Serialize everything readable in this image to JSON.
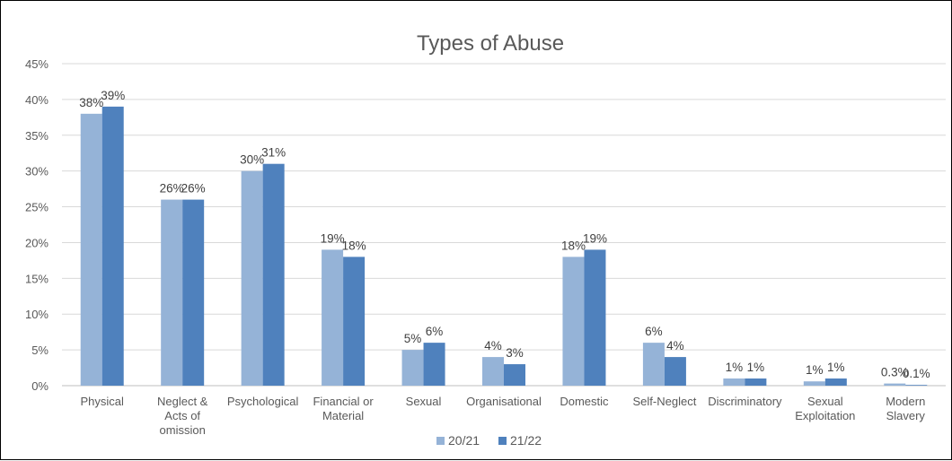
{
  "chart_data": {
    "type": "bar",
    "title": "Types of Abuse",
    "xlabel": "",
    "ylabel": "",
    "ylim": [
      0,
      45
    ],
    "y_ticks": [
      "0%",
      "5%",
      "10%",
      "15%",
      "20%",
      "25%",
      "30%",
      "35%",
      "40%",
      "45%"
    ],
    "y_tick_values": [
      0,
      5,
      10,
      15,
      20,
      25,
      30,
      35,
      40,
      45
    ],
    "grid": true,
    "legend_position": "bottom",
    "categories": [
      [
        "Physical"
      ],
      [
        "Neglect &",
        "Acts of",
        "omission"
      ],
      [
        "Psychological"
      ],
      [
        "Financial or",
        "Material"
      ],
      [
        "Sexual"
      ],
      [
        "Organisational"
      ],
      [
        "Domestic"
      ],
      [
        "Self-Neglect"
      ],
      [
        "Discriminatory"
      ],
      [
        "Sexual",
        "Exploitation"
      ],
      [
        "Modern",
        "Slavery"
      ]
    ],
    "series": [
      {
        "name": "20/21",
        "color": "#95B3D7",
        "values": [
          38,
          26,
          30,
          19,
          5,
          4,
          18,
          6,
          1,
          0.6,
          0.3
        ],
        "labels": [
          "38%",
          "26%",
          "30%",
          "19%",
          "5%",
          "4%",
          "18%",
          "6%",
          "1%",
          "1%",
          "0.3%"
        ]
      },
      {
        "name": "21/22",
        "color": "#4F81BD",
        "values": [
          39,
          26,
          31,
          18,
          6,
          3,
          19,
          4,
          1,
          1,
          0.1
        ],
        "labels": [
          "39%",
          "26%",
          "31%",
          "18%",
          "6%",
          "3%",
          "19%",
          "4%",
          "1%",
          "1%",
          "0.1%"
        ]
      }
    ],
    "gridline_color": "#D9D9D9",
    "axis_color": "#BFBFBF"
  }
}
